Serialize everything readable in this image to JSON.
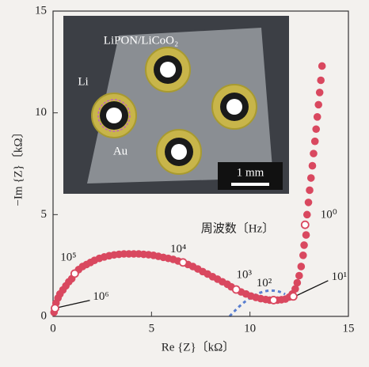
{
  "chart_data": {
    "type": "scatter",
    "xlabel": "Re {Z}〔kΩ〕",
    "ylabel": "−Im {Z}〔kΩ〕",
    "xlim": [
      0,
      15
    ],
    "ylim": [
      0,
      15
    ],
    "xticks": [
      0,
      5,
      10,
      15
    ],
    "yticks": [
      0,
      5,
      10,
      15
    ],
    "annotation_title": "周波数〔Hz〕",
    "series": [
      {
        "color": "#d9485f",
        "x": [
          0.05,
          0.15,
          0.25,
          0.35,
          0.5,
          0.65,
          0.8,
          0.95,
          1.3,
          1.5,
          1.7,
          1.9,
          2.1,
          2.35,
          2.6,
          2.85,
          3.1,
          3.35,
          3.6,
          3.85,
          4.1,
          4.35,
          4.6,
          4.85,
          5.1,
          5.35,
          5.6,
          5.85,
          6.1,
          6.35,
          6.85,
          7.1,
          7.35,
          7.6,
          7.85,
          8.1,
          8.35,
          8.6,
          8.85,
          9.05,
          9.55,
          9.8,
          10.05,
          10.3,
          10.55,
          10.8,
          11.0,
          11.4,
          11.6,
          11.8,
          12.0,
          12.15,
          12.3,
          12.4,
          12.5,
          12.6,
          12.7,
          12.75,
          12.85,
          12.9,
          12.97,
          13.03,
          13.1,
          13.17,
          13.23,
          13.3,
          13.36,
          13.42,
          13.48,
          13.54,
          13.6,
          13.66
        ],
        "y": [
          0.2,
          0.65,
          0.9,
          1.1,
          1.3,
          1.5,
          1.7,
          1.85,
          2.3,
          2.45,
          2.55,
          2.65,
          2.75,
          2.85,
          2.92,
          2.98,
          3.02,
          3.05,
          3.07,
          3.07,
          3.07,
          3.07,
          3.05,
          3.03,
          3.0,
          2.95,
          2.9,
          2.85,
          2.8,
          2.72,
          2.55,
          2.45,
          2.33,
          2.2,
          2.08,
          1.95,
          1.83,
          1.7,
          1.58,
          1.45,
          1.2,
          1.1,
          1.0,
          0.93,
          0.87,
          0.83,
          0.8,
          0.8,
          0.82,
          0.85,
          0.95,
          1.1,
          1.35,
          1.65,
          2.0,
          2.45,
          3.0,
          3.5,
          4.0,
          5.0,
          5.6,
          6.2,
          6.8,
          7.4,
          8.0,
          8.6,
          9.2,
          9.8,
          10.4,
          11.0,
          11.6,
          12.3
        ]
      }
    ],
    "annotations": [
      {
        "label": "10⁶",
        "x": 0.1,
        "y": 0.4
      },
      {
        "label": "10⁵",
        "x": 1.1,
        "y": 2.1
      },
      {
        "label": "10⁴",
        "x": 6.6,
        "y": 2.65
      },
      {
        "label": "10³",
        "x": 9.3,
        "y": 1.32
      },
      {
        "label": "10²",
        "x": 11.2,
        "y": 0.8
      },
      {
        "label": "10¹",
        "x": 12.2,
        "y": 0.98
      },
      {
        "label": "10⁰",
        "x": 12.8,
        "y": 4.5
      }
    ],
    "inset_labels": {
      "cathode": "LiPON/LiCoO₂",
      "anode": "Li",
      "electrode": "Au",
      "scale_bar": "1 mm"
    }
  }
}
